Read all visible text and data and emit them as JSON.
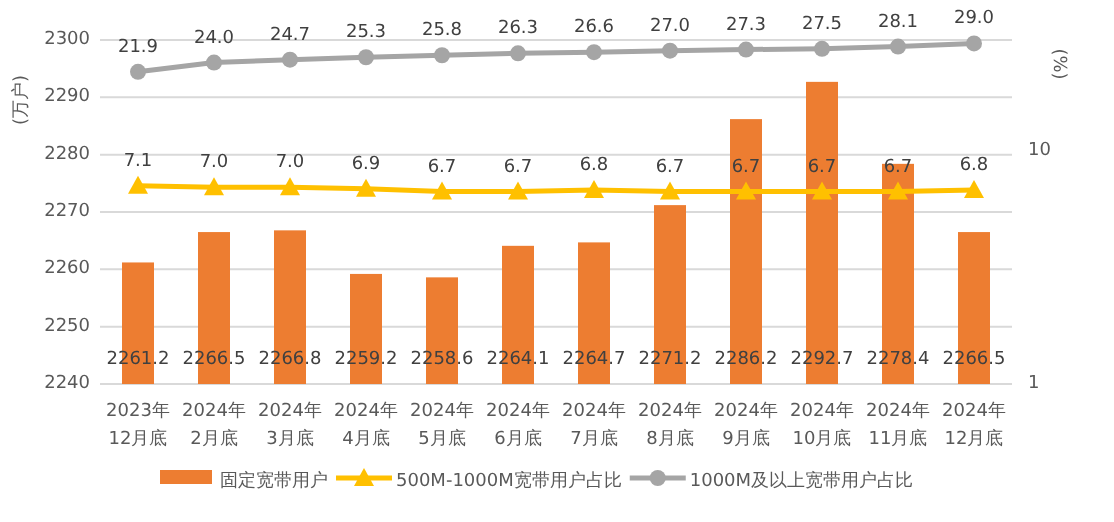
{
  "chart_data": {
    "type": "bar",
    "ylabel": "(万户)",
    "y2label": "(%)",
    "categories": [
      "2023年\n12月底",
      "2024年\n2月底",
      "2024年\n3月底",
      "2024年\n4月底",
      "2024年\n5月底",
      "2024年\n6月底",
      "2024年\n7月底",
      "2024年\n8月底",
      "2024年\n9月底",
      "2024年\n10月底",
      "2024年\n11月底",
      "2024年\n12月底"
    ],
    "series": [
      {
        "name": "固定宽带用户",
        "color": "#ed7d31",
        "values": [
          2261.2,
          2266.5,
          2266.8,
          2259.2,
          2258.6,
          2264.1,
          2264.7,
          2271.2,
          2286.2,
          2292.7,
          2278.4,
          2266.5
        ]
      },
      {
        "name": "500M-1000M宽带用户占比",
        "type": "line",
        "axis": "y2",
        "marker": "triangle",
        "color": "#ffc000",
        "values": [
          7.1,
          7.0,
          7.0,
          6.9,
          6.7,
          6.7,
          6.8,
          6.7,
          6.7,
          6.7,
          6.7,
          6.8
        ],
        "value_labels": [
          "7.1",
          "7.0",
          "7.0",
          "6.9",
          "6.7",
          "6.7",
          "6.8",
          "6.7",
          "6.7",
          "6.7",
          "6.7",
          "6.8"
        ]
      },
      {
        "name": "1000M及以上宽带用户占比",
        "type": "line",
        "axis": "y2",
        "marker": "circle",
        "color": "#a5a5a5",
        "values": [
          21.9,
          24.0,
          24.7,
          25.3,
          25.8,
          26.3,
          26.6,
          27.0,
          27.3,
          27.5,
          28.1,
          29.0
        ],
        "value_labels": [
          "21.9",
          "24.0",
          "24.7",
          "25.3",
          "25.8",
          "26.3",
          "26.6",
          "27.0",
          "27.3",
          "27.5",
          "28.1",
          "29.0"
        ]
      }
    ],
    "ylim": [
      2240,
      2300
    ],
    "yticks": [
      2240,
      2250,
      2260,
      2270,
      2280,
      2290,
      2300
    ],
    "y2lim": [
      1,
      30
    ],
    "y2ticks": [
      1,
      10
    ],
    "log": "y2",
    "grid": "y",
    "legend": "bottom",
    "data_labels": true
  }
}
